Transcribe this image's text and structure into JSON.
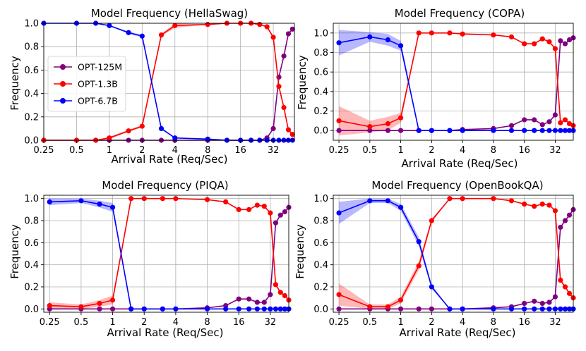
{
  "chart_data": [
    {
      "type": "line",
      "title": "Model Frequency (HellaSwag)",
      "xlabel": "Arrival Rate (Req/Sec)",
      "ylabel": "Frequency",
      "xscale": "log2",
      "xlim": [
        0.25,
        50
      ],
      "xticks": [
        0.25,
        0.5,
        1,
        2,
        4,
        8,
        16,
        32
      ],
      "xticklabels": [
        "0.25",
        "0.5",
        "1",
        "2",
        "4",
        "8",
        "16",
        "32"
      ],
      "ylim": [
        0,
        1
      ],
      "yticks": [
        0,
        0.2,
        0.4,
        0.6,
        0.8,
        1.0
      ],
      "yticklabels": [
        "0.0",
        "0.2",
        "0.4",
        "0.6",
        "0.8",
        "1.0"
      ],
      "legend": "center-left",
      "grid": true,
      "x": [
        0.25,
        0.5,
        0.75,
        1,
        1.5,
        2,
        3,
        4,
        8,
        12,
        16,
        20,
        24,
        28,
        32,
        36,
        40,
        44,
        48
      ],
      "series": [
        {
          "name": "OPT-125M",
          "color": "#800080",
          "values": [
            0,
            0,
            0,
            0,
            0,
            0,
            0,
            0,
            0,
            0,
            0,
            0,
            0,
            0.02,
            0.1,
            0.54,
            0.72,
            0.91,
            0.95
          ],
          "band": [
            0,
            0,
            0,
            0,
            0,
            0,
            0,
            0,
            0,
            0,
            0,
            0,
            0,
            0,
            0,
            0,
            0,
            0,
            0
          ]
        },
        {
          "name": "OPT-1.3B",
          "color": "#ff0000",
          "values": [
            0,
            0,
            0,
            0.02,
            0.08,
            0.12,
            0.9,
            0.98,
            0.99,
            1.0,
            1.0,
            1.0,
            0.99,
            0.97,
            0.88,
            0.46,
            0.28,
            0.09,
            0.05
          ],
          "band": [
            0,
            0,
            0,
            0.01,
            0.01,
            0.01,
            0.01,
            0.02,
            0,
            0,
            0,
            0,
            0,
            0.01,
            0.01,
            0.02,
            0.02,
            0.01,
            0.01
          ]
        },
        {
          "name": "OPT-6.7B",
          "color": "#0000ff",
          "values": [
            1.0,
            1.0,
            1.0,
            0.98,
            0.92,
            0.89,
            0.1,
            0.02,
            0.01,
            0,
            0,
            0,
            0,
            0,
            0,
            0,
            0,
            0,
            0
          ],
          "band": [
            0,
            0,
            0,
            0,
            0.01,
            0.01,
            0.01,
            0,
            0,
            0,
            0,
            0,
            0,
            0,
            0,
            0,
            0,
            0,
            0
          ]
        }
      ]
    },
    {
      "type": "line",
      "title": "Model Frequency (COPA)",
      "xlabel": "Arrival Rate (Req/Sec)",
      "ylabel": "Frequency",
      "xscale": "log2",
      "xlim": [
        0.22,
        48
      ],
      "xticks": [
        0.25,
        0.5,
        1,
        2,
        4,
        8,
        16,
        32
      ],
      "xticklabels": [
        "0.25",
        "0.5",
        "1",
        "2",
        "4",
        "8",
        "16",
        "32"
      ],
      "ylim": [
        -0.1,
        1.1
      ],
      "yticks": [
        0,
        0.2,
        0.4,
        0.6,
        0.8,
        1.0
      ],
      "yticklabels": [
        "0.0",
        "0.2",
        "0.4",
        "0.6",
        "0.8",
        "1.0"
      ],
      "grid": true,
      "x": [
        0.25,
        0.5,
        0.75,
        1,
        1.5,
        2,
        3,
        4,
        8,
        12,
        16,
        20,
        24,
        28,
        32,
        36,
        40,
        44,
        48
      ],
      "series": [
        {
          "name": "OPT-125M",
          "color": "#800080",
          "values": [
            0,
            0,
            0,
            0,
            0,
            0,
            0,
            0.01,
            0.02,
            0.05,
            0.11,
            0.11,
            0.06,
            0.09,
            0.16,
            0.92,
            0.89,
            0.93,
            0.95
          ],
          "band": [
            0,
            0,
            0,
            0,
            0,
            0,
            0,
            0,
            0,
            0,
            0,
            0,
            0,
            0,
            0,
            0,
            0,
            0,
            0
          ]
        },
        {
          "name": "OPT-1.3B",
          "color": "#ff0000",
          "values": [
            0.1,
            0.04,
            0.07,
            0.13,
            1.0,
            1.0,
            1.0,
            0.99,
            0.98,
            0.96,
            0.89,
            0.89,
            0.94,
            0.91,
            0.84,
            0.08,
            0.11,
            0.07,
            0.05
          ],
          "band": [
            0.15,
            0.06,
            0.07,
            0.05,
            0,
            0,
            0,
            0,
            0,
            0,
            0,
            0,
            0,
            0,
            0,
            0,
            0,
            0,
            0
          ]
        },
        {
          "name": "OPT-6.7B",
          "color": "#0000ff",
          "values": [
            0.9,
            0.96,
            0.93,
            0.87,
            0,
            0,
            0,
            0,
            0,
            0,
            0,
            0,
            0,
            0,
            0,
            0,
            0,
            0,
            0
          ],
          "band": [
            0.13,
            0.05,
            0.06,
            0.05,
            0,
            0,
            0,
            0,
            0,
            0,
            0,
            0,
            0,
            0,
            0,
            0,
            0,
            0,
            0
          ]
        }
      ]
    },
    {
      "type": "line",
      "title": "Model Frequency (PIQA)",
      "xlabel": "Arrival Rate (Req/Sec)",
      "ylabel": "Frequency",
      "xscale": "log2",
      "xlim": [
        0.22,
        48
      ],
      "xticks": [
        0.25,
        0.5,
        1,
        2,
        4,
        8,
        16,
        32
      ],
      "xticklabels": [
        "0.25",
        "0.5",
        "1",
        "2",
        "4",
        "8",
        "16",
        "32"
      ],
      "ylim": [
        -0.03,
        1.03
      ],
      "yticks": [
        0,
        0.2,
        0.4,
        0.6,
        0.8,
        1.0
      ],
      "yticklabels": [
        "0.0",
        "0.2",
        "0.4",
        "0.6",
        "0.8",
        "1.0"
      ],
      "grid": true,
      "x": [
        0.25,
        0.5,
        0.75,
        1,
        1.5,
        2,
        3,
        4,
        8,
        12,
        16,
        20,
        24,
        28,
        32,
        36,
        40,
        44,
        48
      ],
      "series": [
        {
          "name": "OPT-125M",
          "color": "#800080",
          "values": [
            0,
            0,
            0,
            0,
            0,
            0,
            0,
            0,
            0.01,
            0.03,
            0.09,
            0.09,
            0.06,
            0.06,
            0.13,
            0.78,
            0.85,
            0.88,
            0.92
          ],
          "band": [
            0,
            0,
            0,
            0,
            0,
            0,
            0,
            0,
            0,
            0,
            0,
            0,
            0,
            0,
            0,
            0,
            0,
            0,
            0
          ]
        },
        {
          "name": "OPT-1.3B",
          "color": "#ff0000",
          "values": [
            0.03,
            0.02,
            0.05,
            0.08,
            1.0,
            1.0,
            1.0,
            1.0,
            0.99,
            0.97,
            0.9,
            0.9,
            0.94,
            0.93,
            0.87,
            0.22,
            0.15,
            0.12,
            0.08
          ],
          "band": [
            0.03,
            0.02,
            0.03,
            0.04,
            0,
            0,
            0,
            0,
            0,
            0,
            0,
            0,
            0,
            0,
            0,
            0,
            0,
            0,
            0
          ]
        },
        {
          "name": "OPT-6.7B",
          "color": "#0000ff",
          "values": [
            0.97,
            0.98,
            0.95,
            0.92,
            0,
            0,
            0,
            0,
            0,
            0,
            0,
            0,
            0,
            0,
            0,
            0,
            0,
            0,
            0
          ],
          "band": [
            0.03,
            0.02,
            0.03,
            0.04,
            0,
            0,
            0,
            0,
            0,
            0,
            0,
            0,
            0,
            0,
            0,
            0,
            0,
            0,
            0
          ]
        }
      ]
    },
    {
      "type": "line",
      "title": "Model Frequency (OpenBookQA)",
      "xlabel": "Arrival Rate (Req/Sec)",
      "ylabel": "Frequency",
      "xscale": "log2",
      "xlim": [
        0.22,
        48
      ],
      "xticks": [
        0.25,
        0.5,
        1,
        2,
        4,
        8,
        16,
        32
      ],
      "xticklabels": [
        "0.25",
        "0.5",
        "1",
        "2",
        "4",
        "8",
        "16",
        "32"
      ],
      "ylim": [
        -0.03,
        1.03
      ],
      "yticks": [
        0,
        0.2,
        0.4,
        0.6,
        0.8,
        1.0
      ],
      "yticklabels": [
        "0.0",
        "0.2",
        "0.4",
        "0.6",
        "0.8",
        "1.0"
      ],
      "grid": true,
      "x": [
        0.25,
        0.5,
        0.75,
        1,
        1.5,
        2,
        3,
        4,
        8,
        12,
        16,
        20,
        24,
        28,
        32,
        36,
        40,
        44,
        48
      ],
      "series": [
        {
          "name": "OPT-125M",
          "color": "#800080",
          "values": [
            0,
            0,
            0,
            0,
            0,
            0,
            0,
            0,
            0.01,
            0.02,
            0.05,
            0.07,
            0.05,
            0.06,
            0.11,
            0.74,
            0.8,
            0.85,
            0.9
          ],
          "band": [
            0,
            0,
            0,
            0,
            0,
            0,
            0,
            0,
            0,
            0,
            0,
            0,
            0,
            0,
            0,
            0,
            0,
            0,
            0
          ]
        },
        {
          "name": "OPT-1.3B",
          "color": "#ff0000",
          "values": [
            0.13,
            0.02,
            0.02,
            0.08,
            0.39,
            0.8,
            1.0,
            1.0,
            1.0,
            0.98,
            0.95,
            0.93,
            0.95,
            0.94,
            0.89,
            0.26,
            0.2,
            0.14,
            0.1
          ],
          "band": [
            0.1,
            0.02,
            0.02,
            0.03,
            0.04,
            0.02,
            0,
            0,
            0,
            0,
            0,
            0,
            0,
            0,
            0,
            0,
            0,
            0,
            0
          ]
        },
        {
          "name": "OPT-6.7B",
          "color": "#0000ff",
          "values": [
            0.87,
            0.98,
            0.98,
            0.92,
            0.61,
            0.2,
            0,
            0,
            0,
            0,
            0,
            0,
            0,
            0,
            0,
            0,
            0,
            0,
            0
          ],
          "band": [
            0.1,
            0.02,
            0.02,
            0.03,
            0.04,
            0.02,
            0,
            0,
            0,
            0,
            0,
            0,
            0,
            0,
            0,
            0,
            0,
            0,
            0
          ]
        }
      ]
    }
  ]
}
